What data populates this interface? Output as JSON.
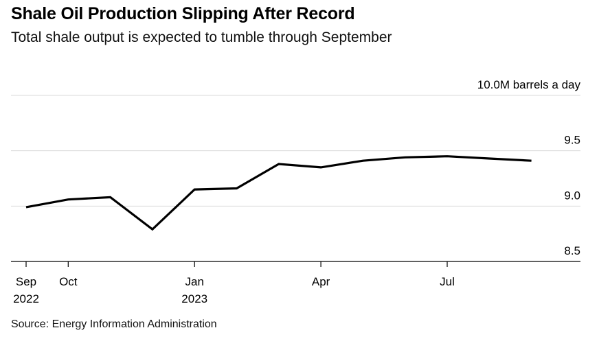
{
  "header": {
    "title": "Shale Oil Production Slipping After Record",
    "subtitle": "Total shale output is expected to tumble through September"
  },
  "footer": {
    "source": "Source: Energy Information Administration"
  },
  "chart_data": {
    "type": "line",
    "title": "Shale Oil Production Slipping After Record",
    "subtitle": "Total shale output is expected to tumble through September",
    "ylabel": "10.0M barrels a day",
    "ylim": [
      8.5,
      10.0
    ],
    "yticks": [
      {
        "value": 10.0,
        "label": "10.0M barrels a day"
      },
      {
        "value": 9.5,
        "label": "9.5"
      },
      {
        "value": 9.0,
        "label": "9.0"
      },
      {
        "value": 8.5,
        "label": "8.5"
      }
    ],
    "xticks": [
      {
        "index": 0,
        "label": "Sep",
        "sublabel": "2022"
      },
      {
        "index": 1,
        "label": "Oct",
        "sublabel": ""
      },
      {
        "index": 4,
        "label": "Jan",
        "sublabel": "2023"
      },
      {
        "index": 7,
        "label": "Apr",
        "sublabel": ""
      },
      {
        "index": 10,
        "label": "Jul",
        "sublabel": ""
      }
    ],
    "series": [
      {
        "name": "Total shale output",
        "x": [
          "Sep 2022",
          "Oct 2022",
          "Nov 2022",
          "Dec 2022",
          "Jan 2023",
          "Feb 2023",
          "Mar 2023",
          "Apr 2023",
          "May 2023",
          "Jun 2023",
          "Jul 2023",
          "Aug 2023",
          "Sep 2023"
        ],
        "values": [
          8.99,
          9.06,
          9.08,
          8.79,
          9.15,
          9.16,
          9.38,
          9.35,
          9.41,
          9.44,
          9.45,
          9.43,
          9.41
        ],
        "color": "#000000"
      }
    ],
    "grid": true
  }
}
